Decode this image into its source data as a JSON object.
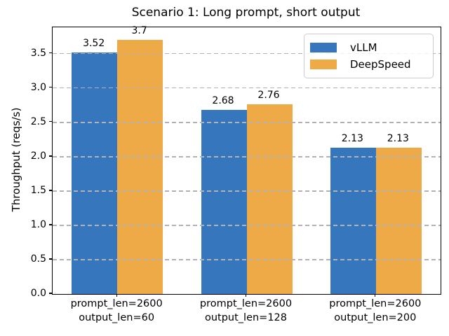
{
  "chart_data": {
    "type": "bar",
    "title": "Scenario 1: Long prompt, short output",
    "xlabel": "",
    "ylabel": "Throughput (reqs/s)",
    "categories": [
      "prompt_len=2600\noutput_len=60",
      "prompt_len=2600\noutput_len=128",
      "prompt_len=2600\noutput_len=200"
    ],
    "series": [
      {
        "name": "vLLM",
        "color": "#3576bc",
        "values": [
          3.52,
          2.68,
          2.13
        ],
        "labels": [
          "3.52",
          "2.68",
          "2.13"
        ]
      },
      {
        "name": "DeepSpeed",
        "color": "#edaa47",
        "values": [
          3.7,
          2.76,
          2.13
        ],
        "labels": [
          "3.7",
          "2.76",
          "2.13"
        ]
      }
    ],
    "ylim": [
      0,
      3.885
    ],
    "yticks": [
      "0.0",
      "0.5",
      "1.0",
      "1.5",
      "2.0",
      "2.5",
      "3.0",
      "3.5"
    ],
    "grid": "horizontal-dashed",
    "grid_color": "#b2b2b2",
    "legend_position": "upper right",
    "background_color": "#ffffff"
  }
}
